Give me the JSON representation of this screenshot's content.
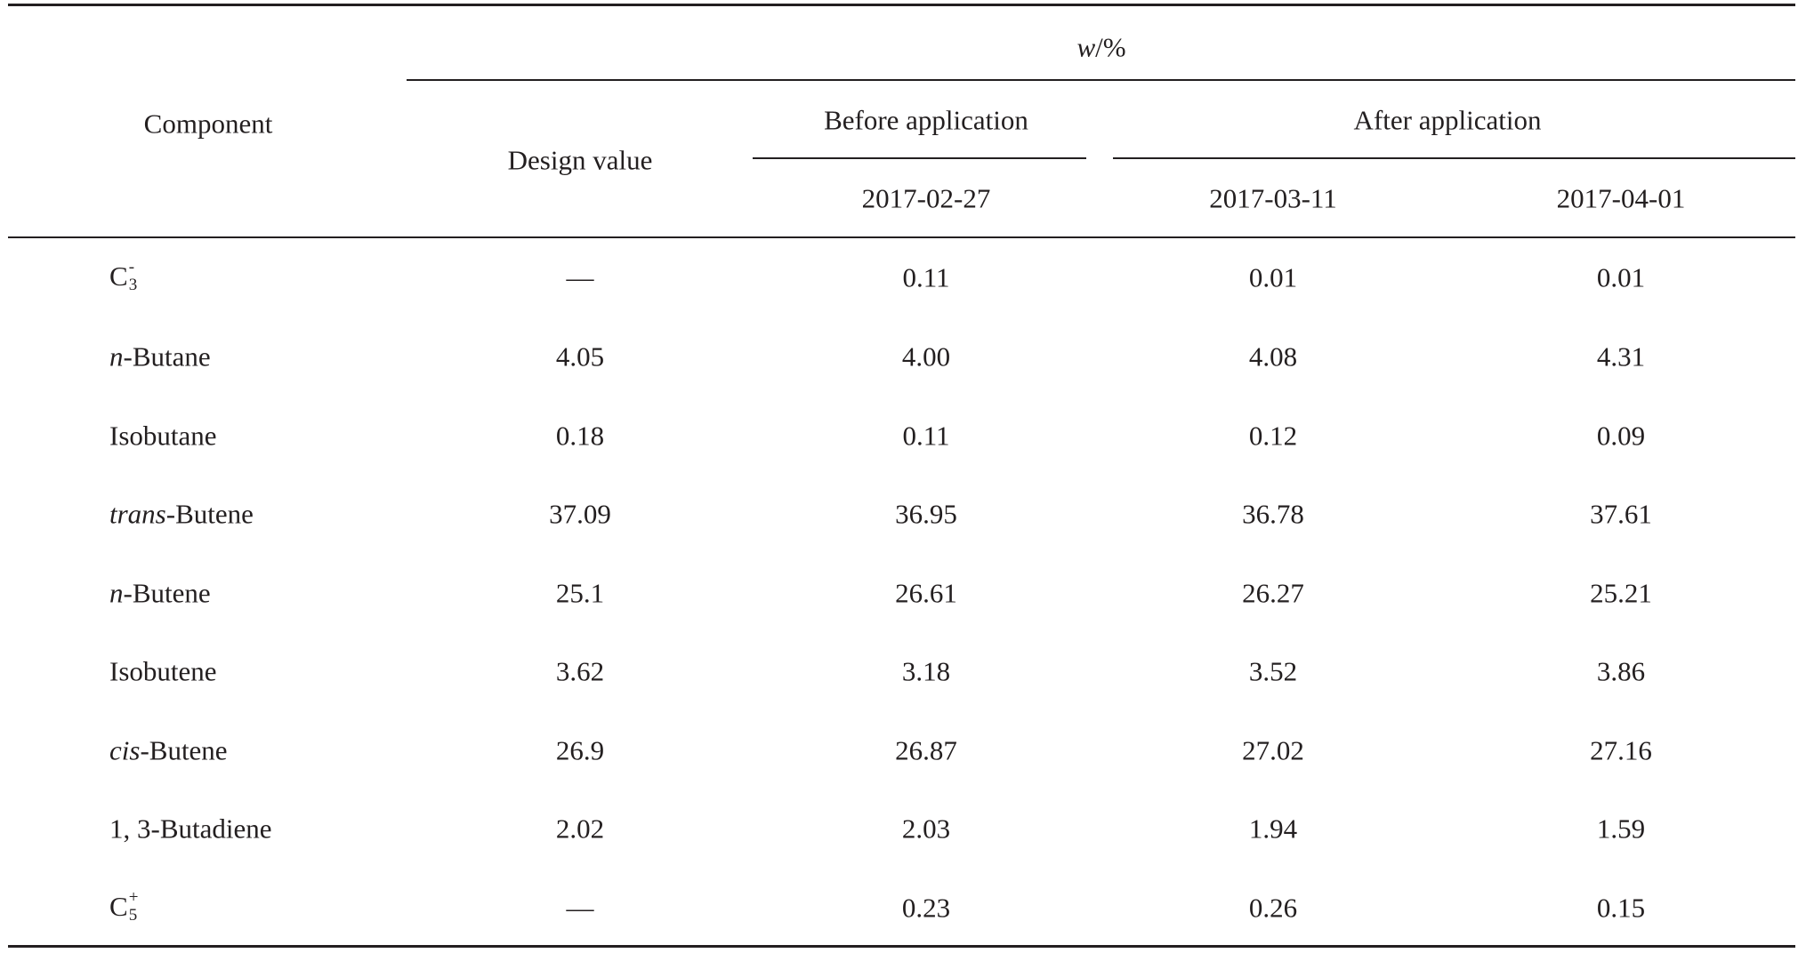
{
  "table": {
    "unit_var": "w",
    "unit_rest": "/%",
    "component_header": "Component",
    "design_header": "Design value",
    "before_header": "Before application",
    "after_header": "After application",
    "dates": [
      "2017-02-27",
      "2017-03-11",
      "2017-04-01"
    ],
    "rows": [
      {
        "name": "C",
        "sub": "3",
        "sup": "-",
        "cells": [
          "—",
          "0.11",
          "0.01",
          "0.01"
        ]
      },
      {
        "prefix": "n",
        "name": "-Butane",
        "cells": [
          "4.05",
          "4.00",
          "4.08",
          "4.31"
        ]
      },
      {
        "name": "Isobutane",
        "cells": [
          "0.18",
          "0.11",
          "0.12",
          "0.09"
        ]
      },
      {
        "prefix": "trans",
        "name": "-Butene",
        "cells": [
          "37.09",
          "36.95",
          "36.78",
          "37.61"
        ]
      },
      {
        "prefix": "n",
        "name": "-Butene",
        "cells": [
          "25.1",
          "26.61",
          "26.27",
          "25.21"
        ]
      },
      {
        "name": "Isobutene",
        "cells": [
          "3.62",
          "3.18",
          "3.52",
          "3.86"
        ]
      },
      {
        "prefix": "cis",
        "name": "-Butene",
        "cells": [
          "26.9",
          "26.87",
          "27.02",
          "27.16"
        ]
      },
      {
        "name": "1, 3-Butadiene",
        "cells": [
          "2.02",
          "2.03",
          "1.94",
          "1.59"
        ]
      },
      {
        "name": "C",
        "sub": "5",
        "sup": "+",
        "cells": [
          "—",
          "0.23",
          "0.26",
          "0.15"
        ]
      }
    ]
  }
}
